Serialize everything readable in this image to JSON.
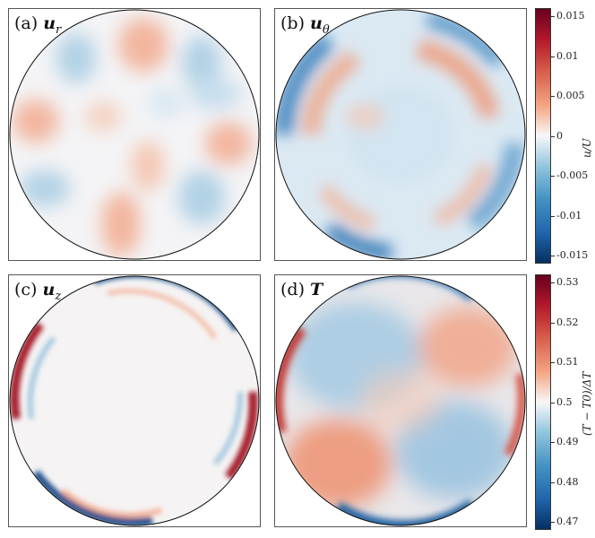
{
  "panels": [
    {
      "letter": "(a)",
      "symbol": "u",
      "sub": "r"
    },
    {
      "letter": "(b)",
      "symbol": "u",
      "sub": "θ"
    },
    {
      "letter": "(c)",
      "symbol": "u",
      "sub": "z"
    },
    {
      "letter": "(d)",
      "symbol": "T",
      "sub": ""
    }
  ],
  "colorbar_top": {
    "label": "u/U",
    "ticks": [
      "0.015",
      "0.01",
      "0.005",
      "0",
      "-0.005",
      "-0.01",
      "-0.015"
    ]
  },
  "colorbar_bottom": {
    "label": "(T − T0)/ΔT",
    "ticks": [
      "0.53",
      "0.52",
      "0.51",
      "0.5",
      "0.49",
      "0.48",
      "0.47"
    ]
  },
  "colors": {
    "red": "#67001f",
    "white": "#f7f7f7",
    "blue": "#053061"
  }
}
